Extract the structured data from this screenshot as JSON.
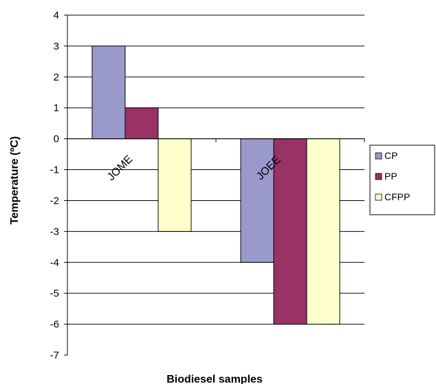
{
  "chart_data": {
    "type": "bar",
    "categories": [
      "JOME",
      "JOEE"
    ],
    "series": [
      {
        "name": "CP",
        "values": [
          3,
          -4
        ],
        "color": "#9999cc"
      },
      {
        "name": "PP",
        "values": [
          1,
          -6
        ],
        "color": "#993366"
      },
      {
        "name": "CFPP",
        "values": [
          -3,
          -6
        ],
        "color": "#ffffcc"
      }
    ],
    "xlabel": "Biodiesel samples",
    "ylabel": "Temperature (ºC)",
    "ylim": [
      -7,
      4
    ],
    "yticks": [
      4,
      3,
      2,
      1,
      0,
      -1,
      -2,
      -3,
      -4,
      -5,
      -6,
      -7
    ],
    "grid": true,
    "legend": "right"
  }
}
